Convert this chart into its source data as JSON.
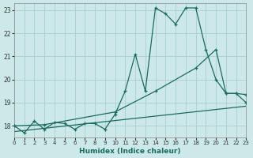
{
  "xlabel": "Humidex (Indice chaleur)",
  "bg_color": "#cde8e8",
  "grid_color": "#aacfcf",
  "line_color": "#1a6b5e",
  "xlim": [
    0,
    23
  ],
  "ylim": [
    17.5,
    23.3
  ],
  "yticks": [
    18,
    19,
    20,
    21,
    22,
    23
  ],
  "xticks": [
    0,
    1,
    2,
    3,
    4,
    5,
    6,
    7,
    8,
    9,
    10,
    11,
    12,
    13,
    14,
    15,
    16,
    17,
    18,
    19,
    20,
    21,
    22,
    23
  ],
  "line1_x": [
    0,
    1,
    2,
    3,
    4,
    5,
    6,
    7,
    8,
    9,
    10,
    11,
    12,
    13,
    14,
    15,
    16,
    17,
    18,
    19,
    20,
    21,
    22,
    23
  ],
  "line1_y": [
    18.0,
    17.7,
    18.2,
    17.85,
    18.15,
    18.1,
    17.85,
    18.1,
    18.1,
    17.85,
    18.5,
    19.5,
    21.1,
    19.5,
    23.1,
    22.85,
    22.4,
    23.1,
    23.1,
    21.3,
    20.0,
    19.4,
    19.4,
    19.0
  ],
  "line2_x": [
    0,
    3,
    10,
    14,
    18,
    20,
    21,
    22,
    23
  ],
  "line2_y": [
    18.0,
    18.05,
    18.6,
    19.5,
    20.5,
    21.3,
    19.4,
    19.4,
    19.35
  ],
  "line3_x": [
    0,
    23
  ],
  "line3_y": [
    17.75,
    18.85
  ]
}
